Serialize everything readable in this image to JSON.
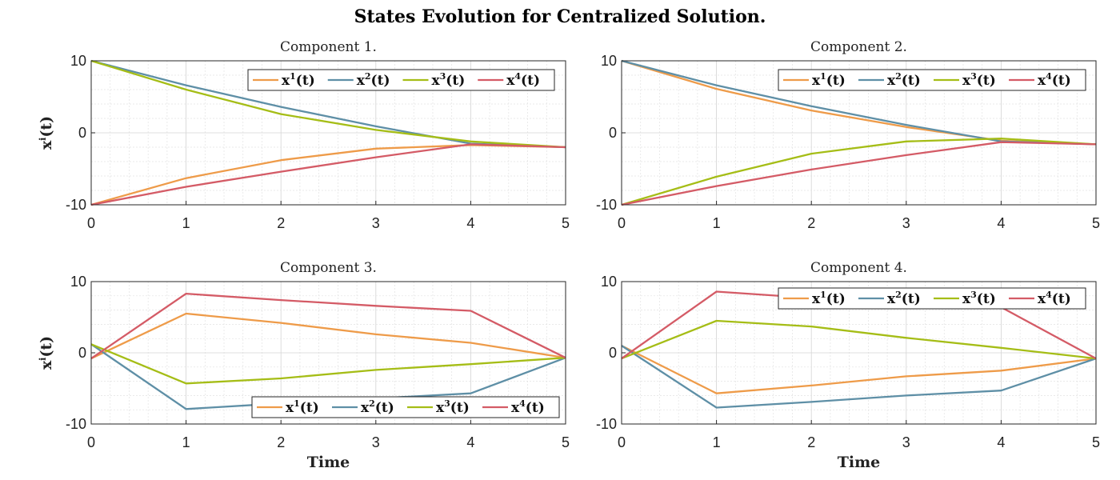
{
  "title": "States Evolution for Centralized Solution.",
  "chart_data": [
    {
      "type": "line",
      "title": "Component 1.",
      "xlabel": "",
      "ylabel": "x^i(t)",
      "xlim": [
        0,
        5
      ],
      "ylim": [
        -10,
        10
      ],
      "xticks": [
        "0",
        "1",
        "2",
        "3",
        "4",
        "5"
      ],
      "yticks": [
        "-10",
        "0",
        "10"
      ],
      "grid": true,
      "legend": "top-right",
      "x": [
        0,
        1,
        2,
        3,
        4,
        5
      ],
      "series": [
        {
          "name": "x^1(t)",
          "color": "#EE9B49",
          "values": [
            -10,
            -6.3,
            -3.8,
            -2.2,
            -1.7,
            -2.0
          ]
        },
        {
          "name": "x^2(t)",
          "color": "#5E8FA6",
          "values": [
            10,
            6.6,
            3.6,
            0.9,
            -1.5,
            -2.0
          ]
        },
        {
          "name": "x^3(t)",
          "color": "#A5BD16",
          "values": [
            10,
            6.0,
            2.6,
            0.4,
            -1.2,
            -2.0
          ]
        },
        {
          "name": "x^4(t)",
          "color": "#D45B66",
          "values": [
            -10,
            -7.5,
            -5.4,
            -3.4,
            -1.6,
            -2.0
          ]
        }
      ]
    },
    {
      "type": "line",
      "title": "Component 2.",
      "xlabel": "",
      "ylabel": "",
      "xlim": [
        0,
        5
      ],
      "ylim": [
        -10,
        10
      ],
      "xticks": [
        "0",
        "1",
        "2",
        "3",
        "4",
        "5"
      ],
      "yticks": [
        "-10",
        "0",
        "10"
      ],
      "grid": true,
      "legend": "top-right",
      "x": [
        0,
        1,
        2,
        3,
        4,
        5
      ],
      "series": [
        {
          "name": "x^1(t)",
          "color": "#EE9B49",
          "values": [
            10,
            6.1,
            3.1,
            0.8,
            -1.1,
            -1.6
          ]
        },
        {
          "name": "x^2(t)",
          "color": "#5E8FA6",
          "values": [
            10,
            6.6,
            3.7,
            1.1,
            -1.2,
            -1.6
          ]
        },
        {
          "name": "x^3(t)",
          "color": "#A5BD16",
          "values": [
            -10,
            -6.1,
            -2.9,
            -1.2,
            -0.8,
            -1.6
          ]
        },
        {
          "name": "x^4(t)",
          "color": "#D45B66",
          "values": [
            -10,
            -7.4,
            -5.1,
            -3.1,
            -1.3,
            -1.6
          ]
        }
      ]
    },
    {
      "type": "line",
      "title": "Component 3.",
      "xlabel": "Time",
      "ylabel": "x^i(t)",
      "xlim": [
        0,
        5
      ],
      "ylim": [
        -10,
        10
      ],
      "xticks": [
        "0",
        "1",
        "2",
        "3",
        "4",
        "5"
      ],
      "yticks": [
        "-10",
        "0",
        "10"
      ],
      "grid": true,
      "legend": "bottom-right",
      "x": [
        0,
        1,
        2,
        3,
        4,
        5
      ],
      "series": [
        {
          "name": "x^1(t)",
          "color": "#EE9B49",
          "values": [
            -0.8,
            5.5,
            4.2,
            2.6,
            1.4,
            -0.7
          ]
        },
        {
          "name": "x^2(t)",
          "color": "#5E8FA6",
          "values": [
            1.2,
            -7.9,
            -7.1,
            -6.4,
            -5.7,
            -0.7
          ]
        },
        {
          "name": "x^3(t)",
          "color": "#A5BD16",
          "values": [
            1.2,
            -4.3,
            -3.6,
            -2.4,
            -1.6,
            -0.7
          ]
        },
        {
          "name": "x^4(t)",
          "color": "#D45B66",
          "values": [
            -0.8,
            8.3,
            7.4,
            6.6,
            5.9,
            -0.7
          ]
        }
      ]
    },
    {
      "type": "line",
      "title": "Component 4.",
      "xlabel": "Time",
      "ylabel": "",
      "xlim": [
        0,
        5
      ],
      "ylim": [
        -10,
        10
      ],
      "xticks": [
        "0",
        "1",
        "2",
        "3",
        "4",
        "5"
      ],
      "yticks": [
        "-10",
        "0",
        "10"
      ],
      "grid": true,
      "legend": "top-right",
      "x": [
        0,
        1,
        2,
        3,
        4,
        5
      ],
      "series": [
        {
          "name": "x^1(t)",
          "color": "#EE9B49",
          "values": [
            1.0,
            -5.7,
            -4.6,
            -3.3,
            -2.5,
            -0.8
          ]
        },
        {
          "name": "x^2(t)",
          "color": "#5E8FA6",
          "values": [
            1.0,
            -7.7,
            -6.9,
            -6.0,
            -5.3,
            -0.8
          ]
        },
        {
          "name": "x^3(t)",
          "color": "#A5BD16",
          "values": [
            -0.8,
            4.5,
            3.7,
            2.1,
            0.7,
            -0.8
          ]
        },
        {
          "name": "x^4(t)",
          "color": "#D45B66",
          "values": [
            -0.8,
            8.6,
            7.7,
            7.2,
            6.4,
            -0.8
          ]
        }
      ]
    }
  ]
}
